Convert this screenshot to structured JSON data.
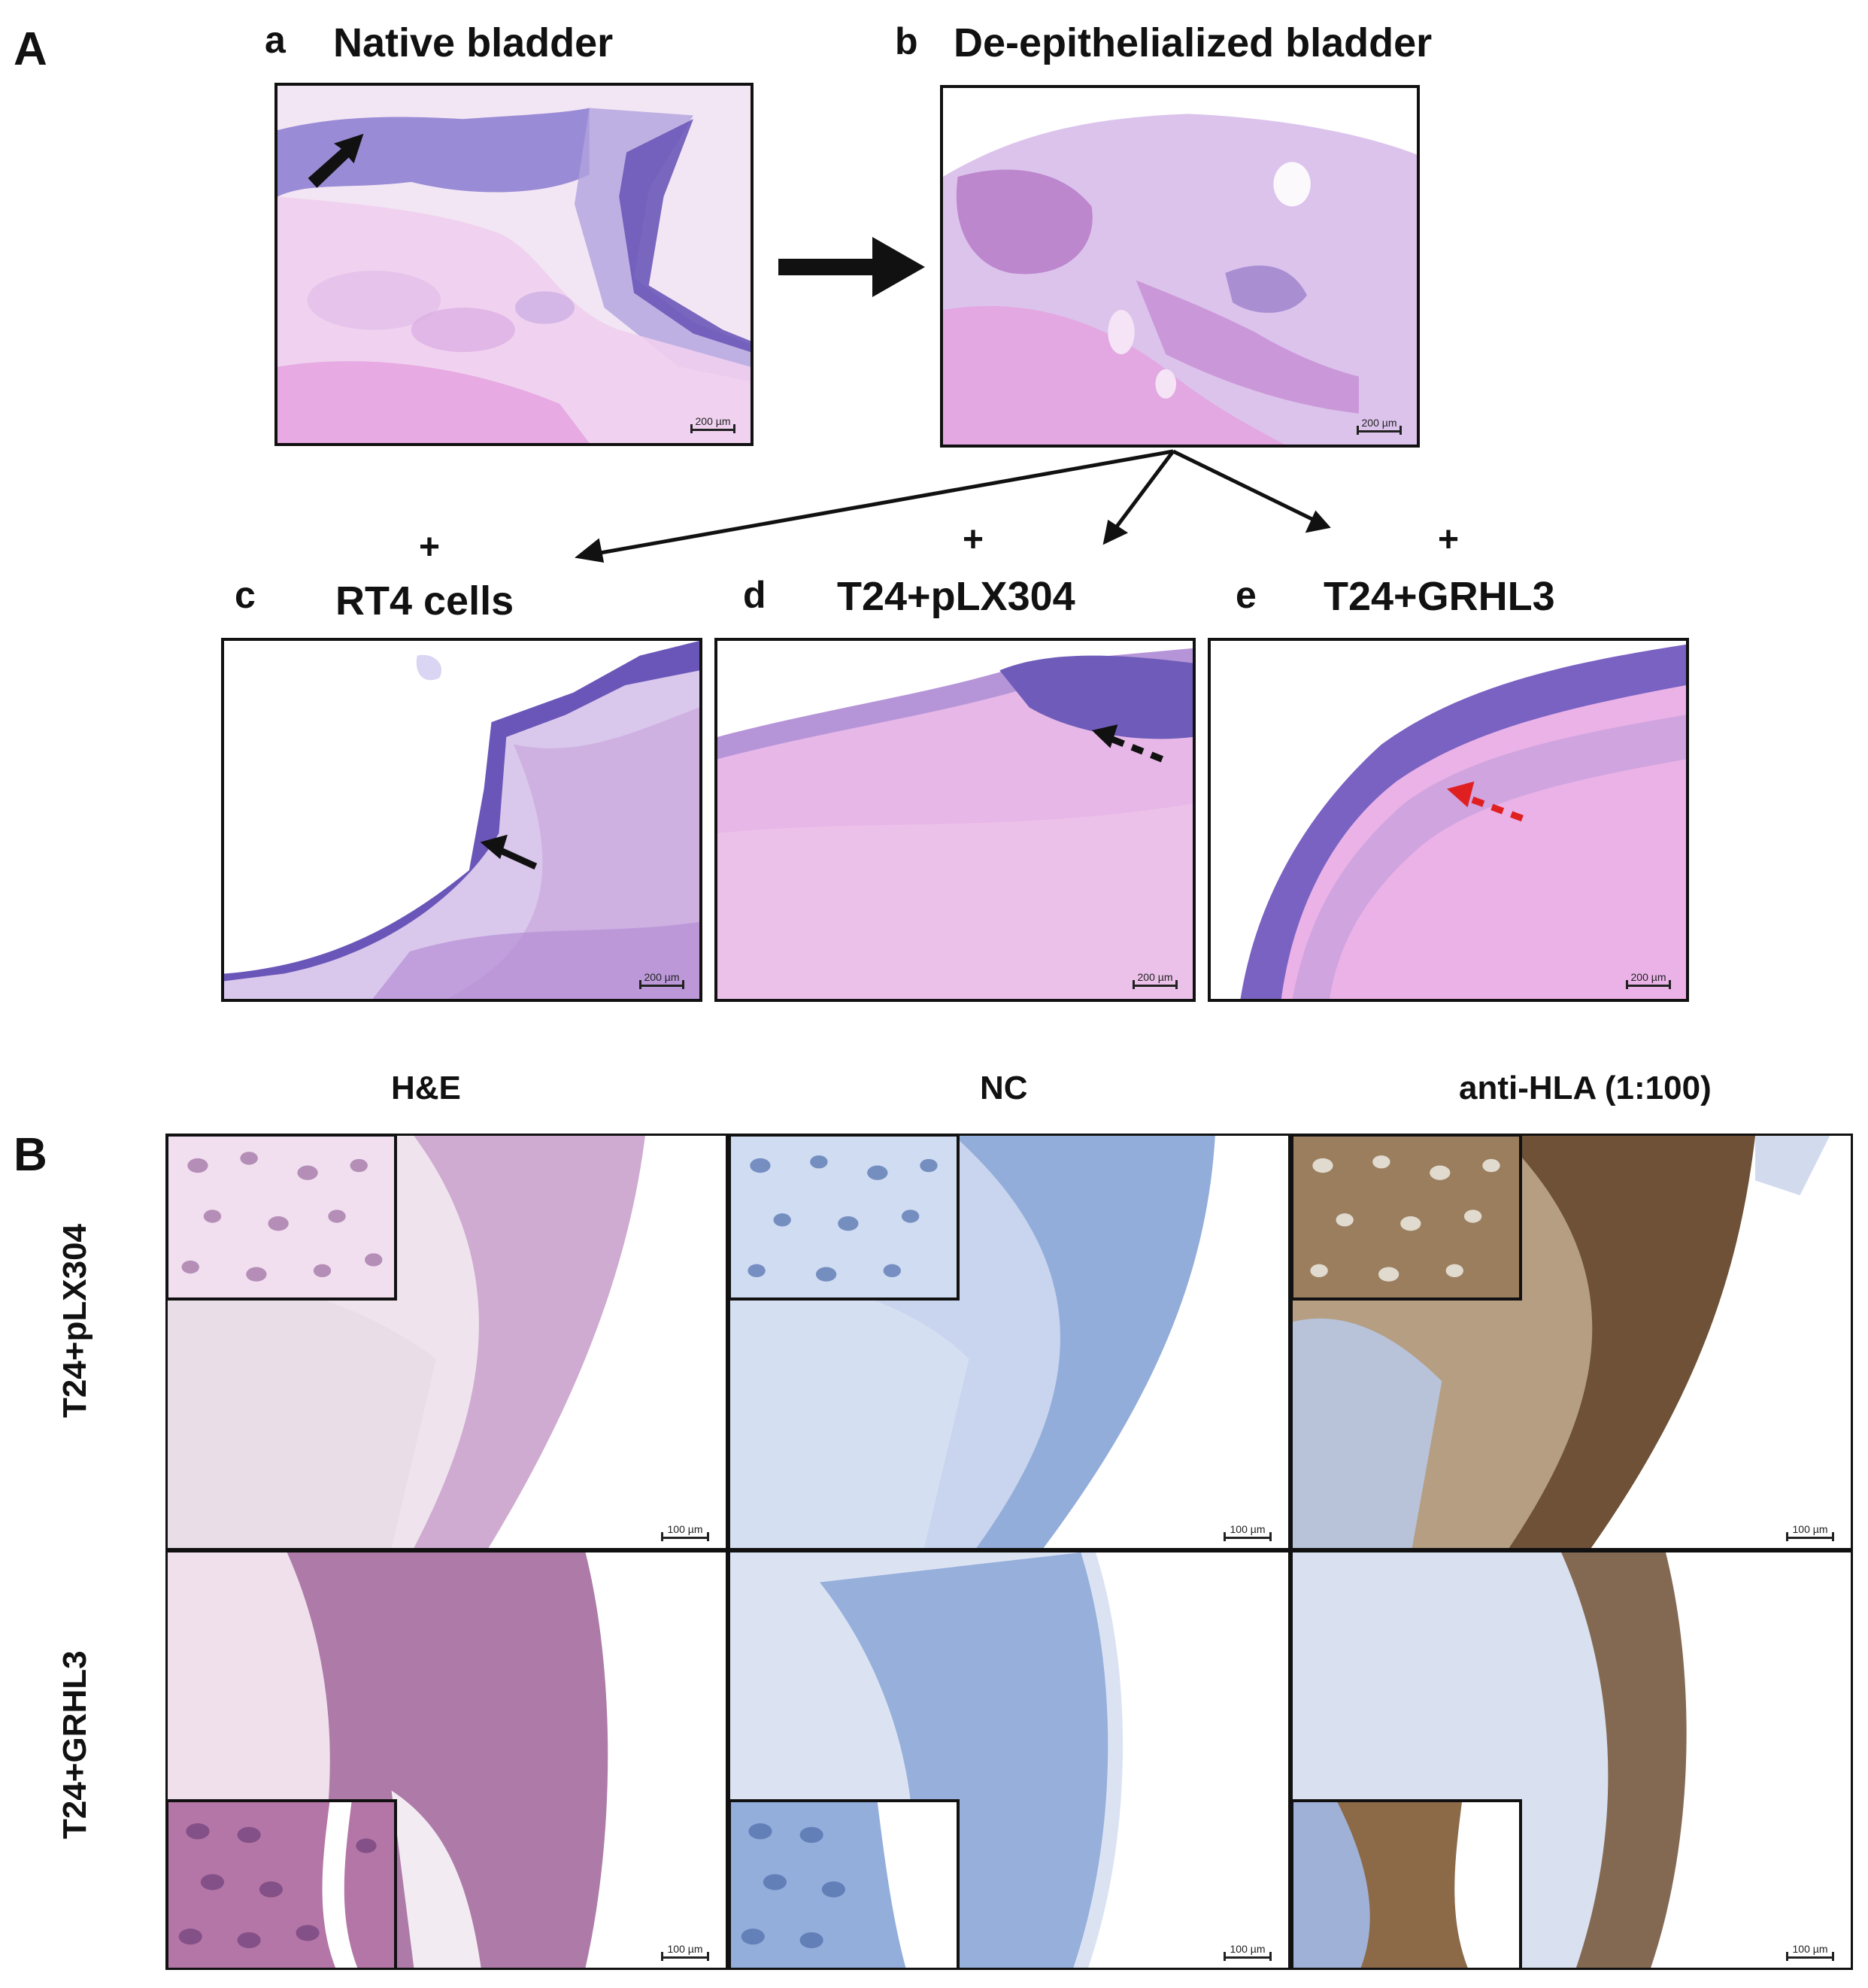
{
  "panel_a": {
    "letter": "A",
    "a": {
      "letter": "a",
      "title": "Native bladder",
      "scale": "200 µm"
    },
    "b": {
      "letter": "b",
      "title": "De-epithelialized bladder",
      "scale": "200 µm"
    },
    "c": {
      "letter": "c",
      "plus": "+",
      "title": "RT4 cells",
      "scale": "200 µm"
    },
    "d": {
      "letter": "d",
      "plus": "+",
      "title": "T24+pLX304",
      "scale": "200 µm"
    },
    "e": {
      "letter": "e",
      "plus": "+",
      "title": "T24+GRHL3",
      "scale": "200 µm"
    }
  },
  "panel_b": {
    "letter": "B",
    "columns": [
      "H&E",
      "NC",
      "anti-HLA (1:100)"
    ],
    "rows": [
      "T24+pLX304",
      "T24+GRHL3"
    ],
    "scale": "100 µm"
  },
  "colors": {
    "he_purple": "#7f5fbf",
    "he_pink": "#e9a6e0",
    "nc_blue": "#8aa6d6",
    "hla_brown": "#6e5136",
    "red_arrow": "#e02020"
  }
}
